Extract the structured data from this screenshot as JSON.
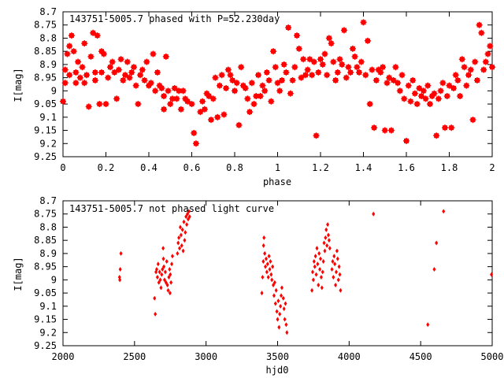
{
  "chart_data": [
    {
      "type": "scatter",
      "title": "143751-5005.7 phased with P=52.230day",
      "xlabel": "phase",
      "ylabel": "I[mag]",
      "xlim": [
        0,
        2
      ],
      "ylim": [
        8.7,
        9.25
      ],
      "y_inverted": true,
      "xticks": [
        0,
        0.2,
        0.4,
        0.6,
        0.8,
        1,
        1.2,
        1.4,
        1.6,
        1.8,
        2
      ],
      "xtick_labels": [
        "0",
        "0.2",
        "0.4",
        "0.6",
        "0.8",
        "1",
        "1.2",
        "1.4",
        "1.6",
        "1.8",
        "2"
      ],
      "yticks": [
        8.7,
        8.75,
        8.8,
        8.85,
        8.9,
        8.95,
        9,
        9.05,
        9.1,
        9.15,
        9.2,
        9.25
      ],
      "ytick_labels": [
        "8.7",
        "8.75",
        "8.8",
        "8.85",
        "8.9",
        "8.95",
        "9",
        "9.05",
        "9.1",
        "9.15",
        "9.2",
        "9.25"
      ],
      "marker_color": "#ff0000",
      "grid": false,
      "points": [
        [
          0.0,
          9.04
        ],
        [
          0.01,
          8.92
        ],
        [
          0.01,
          8.97
        ],
        [
          0.02,
          8.86
        ],
        [
          0.03,
          8.94
        ],
        [
          0.03,
          8.83
        ],
        [
          0.04,
          8.79
        ],
        [
          0.05,
          8.85
        ],
        [
          0.06,
          8.97
        ],
        [
          0.06,
          8.93
        ],
        [
          0.07,
          8.89
        ],
        [
          0.08,
          8.95
        ],
        [
          0.09,
          8.91
        ],
        [
          0.1,
          8.82
        ],
        [
          0.1,
          8.97
        ],
        [
          0.11,
          8.94
        ],
        [
          0.12,
          9.06
        ],
        [
          0.13,
          8.87
        ],
        [
          0.14,
          8.78
        ],
        [
          0.15,
          8.93
        ],
        [
          0.15,
          8.96
        ],
        [
          0.16,
          8.79
        ],
        [
          0.17,
          9.05
        ],
        [
          0.18,
          8.93
        ],
        [
          0.18,
          8.85
        ],
        [
          0.19,
          8.86
        ],
        [
          0.2,
          9.05
        ],
        [
          0.21,
          8.95
        ],
        [
          0.22,
          8.91
        ],
        [
          0.23,
          8.89
        ],
        [
          0.24,
          8.93
        ],
        [
          0.25,
          9.03
        ],
        [
          0.26,
          8.92
        ],
        [
          0.27,
          8.88
        ],
        [
          0.28,
          8.96
        ],
        [
          0.29,
          8.94
        ],
        [
          0.3,
          8.89
        ],
        [
          0.31,
          8.95
        ],
        [
          0.32,
          8.93
        ],
        [
          0.33,
          8.91
        ],
        [
          0.34,
          8.98
        ],
        [
          0.35,
          9.05
        ],
        [
          0.36,
          8.94
        ],
        [
          0.37,
          8.92
        ],
        [
          0.38,
          8.96
        ],
        [
          0.39,
          8.89
        ],
        [
          0.4,
          8.98
        ],
        [
          0.41,
          8.97
        ],
        [
          0.42,
          8.86
        ],
        [
          0.43,
          9.0
        ],
        [
          0.44,
          8.93
        ],
        [
          0.45,
          8.98
        ],
        [
          0.46,
          8.99
        ],
        [
          0.47,
          9.07
        ],
        [
          0.47,
          9.02
        ],
        [
          0.48,
          8.87
        ],
        [
          0.49,
          9.0
        ],
        [
          0.5,
          9.05
        ],
        [
          0.51,
          9.03
        ],
        [
          0.52,
          8.99
        ],
        [
          0.53,
          9.03
        ],
        [
          0.54,
          9.0
        ],
        [
          0.55,
          9.07
        ],
        [
          0.56,
          9.0
        ],
        [
          0.57,
          9.03
        ],
        [
          0.58,
          9.04
        ],
        [
          0.6,
          9.05
        ],
        [
          0.61,
          9.16
        ],
        [
          0.62,
          9.2
        ],
        [
          0.64,
          9.08
        ],
        [
          0.65,
          9.04
        ],
        [
          0.66,
          9.07
        ],
        [
          0.67,
          9.01
        ],
        [
          0.68,
          9.02
        ],
        [
          0.69,
          9.11
        ],
        [
          0.7,
          9.03
        ],
        [
          0.71,
          8.95
        ],
        [
          0.72,
          9.1
        ],
        [
          0.73,
          8.98
        ],
        [
          0.74,
          8.94
        ],
        [
          0.75,
          9.09
        ],
        [
          0.76,
          8.99
        ],
        [
          0.77,
          8.92
        ],
        [
          0.78,
          8.94
        ],
        [
          0.79,
          8.96
        ],
        [
          0.8,
          9.0
        ],
        [
          0.81,
          8.97
        ],
        [
          0.82,
          9.13
        ],
        [
          0.83,
          8.91
        ],
        [
          0.84,
          8.98
        ],
        [
          0.85,
          8.99
        ],
        [
          0.86,
          9.03
        ],
        [
          0.87,
          9.08
        ],
        [
          0.88,
          8.97
        ],
        [
          0.89,
          9.05
        ],
        [
          0.9,
          9.02
        ],
        [
          0.91,
          8.94
        ],
        [
          0.92,
          9.02
        ],
        [
          0.93,
          8.98
        ],
        [
          0.94,
          9.0
        ],
        [
          0.95,
          8.93
        ],
        [
          0.96,
          8.96
        ],
        [
          0.97,
          9.04
        ],
        [
          0.98,
          8.85
        ],
        [
          0.99,
          8.91
        ],
        [
          1.0,
          8.97
        ],
        [
          1.01,
          9.0
        ],
        [
          1.02,
          8.96
        ],
        [
          1.03,
          8.9
        ],
        [
          1.04,
          8.93
        ],
        [
          1.05,
          8.76
        ],
        [
          1.06,
          9.01
        ],
        [
          1.07,
          8.96
        ],
        [
          1.08,
          8.91
        ],
        [
          1.09,
          8.79
        ],
        [
          1.1,
          8.84
        ],
        [
          1.11,
          8.95
        ],
        [
          1.12,
          8.88
        ],
        [
          1.13,
          8.94
        ],
        [
          1.14,
          8.92
        ],
        [
          1.15,
          8.88
        ],
        [
          1.16,
          8.94
        ],
        [
          1.17,
          8.89
        ],
        [
          1.18,
          9.17
        ],
        [
          1.19,
          8.93
        ],
        [
          1.2,
          8.88
        ],
        [
          1.21,
          8.9
        ],
        [
          1.22,
          8.86
        ],
        [
          1.23,
          8.94
        ],
        [
          1.24,
          8.8
        ],
        [
          1.25,
          8.82
        ],
        [
          1.26,
          8.89
        ],
        [
          1.27,
          8.96
        ],
        [
          1.28,
          8.93
        ],
        [
          1.29,
          8.88
        ],
        [
          1.3,
          8.9
        ],
        [
          1.31,
          8.77
        ],
        [
          1.32,
          8.95
        ],
        [
          1.33,
          8.91
        ],
        [
          1.34,
          8.93
        ],
        [
          1.35,
          8.84
        ],
        [
          1.36,
          8.87
        ],
        [
          1.37,
          8.91
        ],
        [
          1.38,
          8.93
        ],
        [
          1.39,
          8.89
        ],
        [
          1.4,
          8.74
        ],
        [
          1.41,
          8.94
        ],
        [
          1.42,
          8.81
        ],
        [
          1.43,
          9.05
        ],
        [
          1.44,
          8.92
        ],
        [
          1.45,
          9.14
        ],
        [
          1.46,
          8.96
        ],
        [
          1.47,
          8.92
        ],
        [
          1.48,
          8.93
        ],
        [
          1.49,
          8.91
        ],
        [
          1.5,
          9.15
        ],
        [
          1.51,
          8.97
        ],
        [
          1.52,
          8.95
        ],
        [
          1.53,
          9.15
        ],
        [
          1.54,
          8.96
        ],
        [
          1.55,
          8.91
        ],
        [
          1.56,
          8.97
        ],
        [
          1.57,
          9.0
        ],
        [
          1.58,
          8.94
        ],
        [
          1.59,
          9.03
        ],
        [
          1.6,
          9.19
        ],
        [
          1.61,
          8.98
        ],
        [
          1.62,
          9.04
        ],
        [
          1.63,
          8.96
        ],
        [
          1.64,
          9.01
        ],
        [
          1.65,
          9.05
        ],
        [
          1.66,
          8.99
        ],
        [
          1.67,
          9.02
        ],
        [
          1.68,
          9.0
        ],
        [
          1.69,
          9.03
        ],
        [
          1.7,
          8.98
        ],
        [
          1.71,
          9.05
        ],
        [
          1.72,
          9.02
        ],
        [
          1.73,
          9.01
        ],
        [
          1.74,
          9.17
        ],
        [
          1.75,
          9.03
        ],
        [
          1.76,
          9.0
        ],
        [
          1.77,
          8.97
        ],
        [
          1.78,
          9.14
        ],
        [
          1.79,
          9.02
        ],
        [
          1.8,
          8.98
        ],
        [
          1.81,
          9.14
        ],
        [
          1.82,
          8.99
        ],
        [
          1.83,
          8.94
        ],
        [
          1.84,
          8.96
        ],
        [
          1.85,
          9.02
        ],
        [
          1.86,
          8.88
        ],
        [
          1.87,
          8.91
        ],
        [
          1.88,
          8.98
        ],
        [
          1.89,
          8.94
        ],
        [
          1.9,
          8.92
        ],
        [
          1.91,
          9.11
        ],
        [
          1.92,
          8.89
        ],
        [
          1.93,
          8.96
        ],
        [
          1.94,
          8.75
        ],
        [
          1.95,
          8.78
        ],
        [
          1.96,
          8.92
        ],
        [
          1.97,
          8.89
        ],
        [
          1.98,
          8.86
        ],
        [
          1.99,
          8.83
        ],
        [
          2.0,
          8.91
        ]
      ]
    },
    {
      "type": "scatter",
      "title": "143751-5005.7 not phased light curve",
      "xlabel": "hjd0",
      "ylabel": "I[mag]",
      "xlim": [
        2000,
        5000
      ],
      "ylim": [
        8.7,
        9.25
      ],
      "y_inverted": true,
      "xticks": [
        2000,
        2500,
        3000,
        3500,
        4000,
        4500,
        5000
      ],
      "xtick_labels": [
        "2000",
        "2500",
        "3000",
        "3500",
        "4000",
        "4500",
        "5000"
      ],
      "yticks": [
        8.7,
        8.75,
        8.8,
        8.85,
        8.9,
        8.95,
        9,
        9.05,
        9.1,
        9.15,
        9.2,
        9.25
      ],
      "ytick_labels": [
        "8.7",
        "8.75",
        "8.8",
        "8.85",
        "8.9",
        "8.95",
        "9",
        "9.05",
        "9.1",
        "9.15",
        "9.2",
        "9.25"
      ],
      "marker_color": "#ff0000",
      "grid": false,
      "points": [
        [
          2395,
          8.99
        ],
        [
          2397,
          9.0
        ],
        [
          2400,
          8.96
        ],
        [
          2405,
          8.9
        ],
        [
          2640,
          9.07
        ],
        [
          2645,
          9.13
        ],
        [
          2650,
          8.97
        ],
        [
          2655,
          8.96
        ],
        [
          2660,
          8.99
        ],
        [
          2665,
          8.94
        ],
        [
          2670,
          9.01
        ],
        [
          2675,
          8.97
        ],
        [
          2680,
          9.0
        ],
        [
          2685,
          9.03
        ],
        [
          2690,
          8.98
        ],
        [
          2695,
          8.96
        ],
        [
          2700,
          8.88
        ],
        [
          2702,
          8.92
        ],
        [
          2705,
          8.95
        ],
        [
          2710,
          9.0
        ],
        [
          2715,
          8.97
        ],
        [
          2720,
          9.01
        ],
        [
          2725,
          8.93
        ],
        [
          2730,
          9.02
        ],
        [
          2735,
          9.04
        ],
        [
          2740,
          8.99
        ],
        [
          2745,
          8.96
        ],
        [
          2748,
          9.05
        ],
        [
          2750,
          8.98
        ],
        [
          2755,
          9.01
        ],
        [
          2760,
          8.94
        ],
        [
          2765,
          8.91
        ],
        [
          2800,
          8.9
        ],
        [
          2805,
          8.86
        ],
        [
          2810,
          8.84
        ],
        [
          2815,
          8.88
        ],
        [
          2820,
          8.8
        ],
        [
          2825,
          8.83
        ],
        [
          2830,
          8.87
        ],
        [
          2835,
          8.81
        ],
        [
          2840,
          8.89
        ],
        [
          2845,
          8.78
        ],
        [
          2850,
          8.85
        ],
        [
          2855,
          8.82
        ],
        [
          2860,
          8.76
        ],
        [
          2865,
          8.79
        ],
        [
          2870,
          8.75
        ],
        [
          2875,
          8.77
        ],
        [
          2880,
          8.74
        ],
        [
          2885,
          8.76
        ],
        [
          3390,
          9.05
        ],
        [
          3395,
          8.99
        ],
        [
          3400,
          8.93
        ],
        [
          3402,
          8.87
        ],
        [
          3405,
          8.84
        ],
        [
          3410,
          8.9
        ],
        [
          3415,
          8.95
        ],
        [
          3420,
          8.92
        ],
        [
          3425,
          8.97
        ],
        [
          3430,
          8.94
        ],
        [
          3435,
          8.99
        ],
        [
          3440,
          8.91
        ],
        [
          3445,
          8.96
        ],
        [
          3450,
          8.93
        ],
        [
          3455,
          8.98
        ],
        [
          3460,
          9.0
        ],
        [
          3465,
          8.95
        ],
        [
          3470,
          9.02
        ],
        [
          3475,
          9.06
        ],
        [
          3480,
          9.01
        ],
        [
          3485,
          9.09
        ],
        [
          3490,
          9.04
        ],
        [
          3495,
          9.12
        ],
        [
          3500,
          9.15
        ],
        [
          3505,
          9.08
        ],
        [
          3510,
          9.18
        ],
        [
          3515,
          9.13
        ],
        [
          3520,
          9.1
        ],
        [
          3525,
          9.06
        ],
        [
          3530,
          9.03
        ],
        [
          3540,
          9.07
        ],
        [
          3545,
          9.11
        ],
        [
          3550,
          9.15
        ],
        [
          3555,
          9.09
        ],
        [
          3560,
          9.17
        ],
        [
          3565,
          9.2
        ],
        [
          3740,
          9.04
        ],
        [
          3745,
          8.97
        ],
        [
          3750,
          9.0
        ],
        [
          3755,
          8.93
        ],
        [
          3760,
          8.95
        ],
        [
          3765,
          8.91
        ],
        [
          3770,
          8.98
        ],
        [
          3775,
          8.88
        ],
        [
          3780,
          8.94
        ],
        [
          3785,
          9.02
        ],
        [
          3790,
          8.9
        ],
        [
          3795,
          8.96
        ],
        [
          3800,
          8.92
        ],
        [
          3805,
          8.99
        ],
        [
          3810,
          9.03
        ],
        [
          3815,
          8.97
        ],
        [
          3820,
          8.93
        ],
        [
          3825,
          8.86
        ],
        [
          3830,
          8.89
        ],
        [
          3835,
          8.84
        ],
        [
          3840,
          8.81
        ],
        [
          3845,
          8.87
        ],
        [
          3850,
          8.79
        ],
        [
          3855,
          8.83
        ],
        [
          3860,
          8.85
        ],
        [
          3865,
          8.88
        ],
        [
          3880,
          8.96
        ],
        [
          3885,
          8.93
        ],
        [
          3890,
          8.99
        ],
        [
          3895,
          8.91
        ],
        [
          3900,
          8.94
        ],
        [
          3905,
          9.02
        ],
        [
          3910,
          8.97
        ],
        [
          3915,
          8.89
        ],
        [
          3920,
          8.92
        ],
        [
          3925,
          9.0
        ],
        [
          3930,
          8.95
        ],
        [
          3935,
          8.98
        ],
        [
          3940,
          9.04
        ],
        [
          4170,
          8.75
        ],
        [
          4550,
          9.17
        ],
        [
          4595,
          8.96
        ],
        [
          4610,
          8.86
        ],
        [
          4660,
          8.74
        ],
        [
          4995,
          8.98
        ]
      ]
    }
  ]
}
